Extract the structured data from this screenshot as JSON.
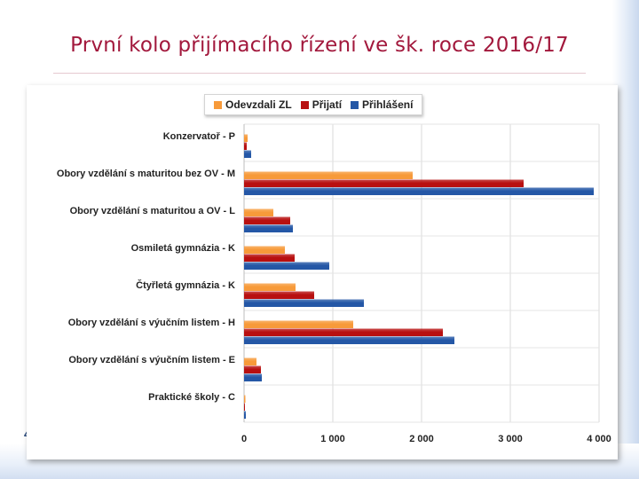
{
  "slide": {
    "title": "První kolo přijímacího řízení ve šk. roce 2016/17",
    "page_number": "4"
  },
  "chart_data": {
    "type": "bar",
    "orientation": "horizontal",
    "title": "",
    "xlabel": "",
    "ylabel": "",
    "xlim": [
      0,
      4000
    ],
    "x_ticks": [
      0,
      1000,
      2000,
      3000,
      4000
    ],
    "x_tick_labels": [
      "0",
      "1 000",
      "2 000",
      "3 000",
      "4 000"
    ],
    "grid": "vertical",
    "legend_position": "top",
    "categories": [
      "Konzervatoř - P",
      "Obory vzdělání s maturitou bez OV - M",
      "Obory vzdělání s maturitou a OV - L",
      "Osmiletá gymnázia - K",
      "Čtyřletá gymnázia - K",
      "Obory vzdělání s výučním listem - H",
      "Obory vzdělání s výučním listem - E",
      "Praktické školy - C"
    ],
    "series": [
      {
        "name": "Odevzdali ZL",
        "color": "#F79A3A",
        "values": [
          40,
          1900,
          330,
          460,
          580,
          1230,
          140,
          15
        ]
      },
      {
        "name": "Přijatí",
        "color": "#B81010",
        "values": [
          30,
          3150,
          520,
          570,
          790,
          2240,
          190,
          10
        ]
      },
      {
        "name": "Přihlášení",
        "color": "#2457A6",
        "values": [
          80,
          3940,
          550,
          960,
          1350,
          2370,
          200,
          20
        ]
      }
    ]
  }
}
